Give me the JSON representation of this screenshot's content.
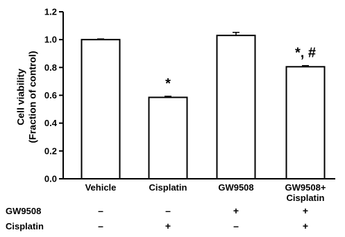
{
  "chart_data": {
    "type": "bar",
    "title": "",
    "ylabel": [
      "Cell viability",
      "(Fraction of control)"
    ],
    "xlabel": "",
    "ylim": [
      0,
      1.2
    ],
    "yticks": [
      "0.0",
      "0.2",
      "0.4",
      "0.6",
      "0.8",
      "1.0",
      "1.2"
    ],
    "categories": [
      [
        "Vehicle"
      ],
      [
        "Cisplatin"
      ],
      [
        "GW9508"
      ],
      [
        "GW9508+",
        "Cisplatin"
      ]
    ],
    "values": [
      1.0,
      0.585,
      1.03,
      0.805
    ],
    "errors": [
      0.005,
      0.008,
      0.022,
      0.008
    ],
    "annotations": [
      "",
      "*",
      "",
      "*, #"
    ],
    "bar_color": "#ffffff",
    "bar_edge_color": "#000000",
    "grid": false,
    "legend": "none",
    "treatment_table": {
      "rows": [
        {
          "label": "GW9508",
          "signs": [
            "–",
            "–",
            "+",
            "+"
          ]
        },
        {
          "label": "Cisplatin",
          "signs": [
            "–",
            "+",
            "–",
            "+"
          ]
        }
      ]
    }
  }
}
